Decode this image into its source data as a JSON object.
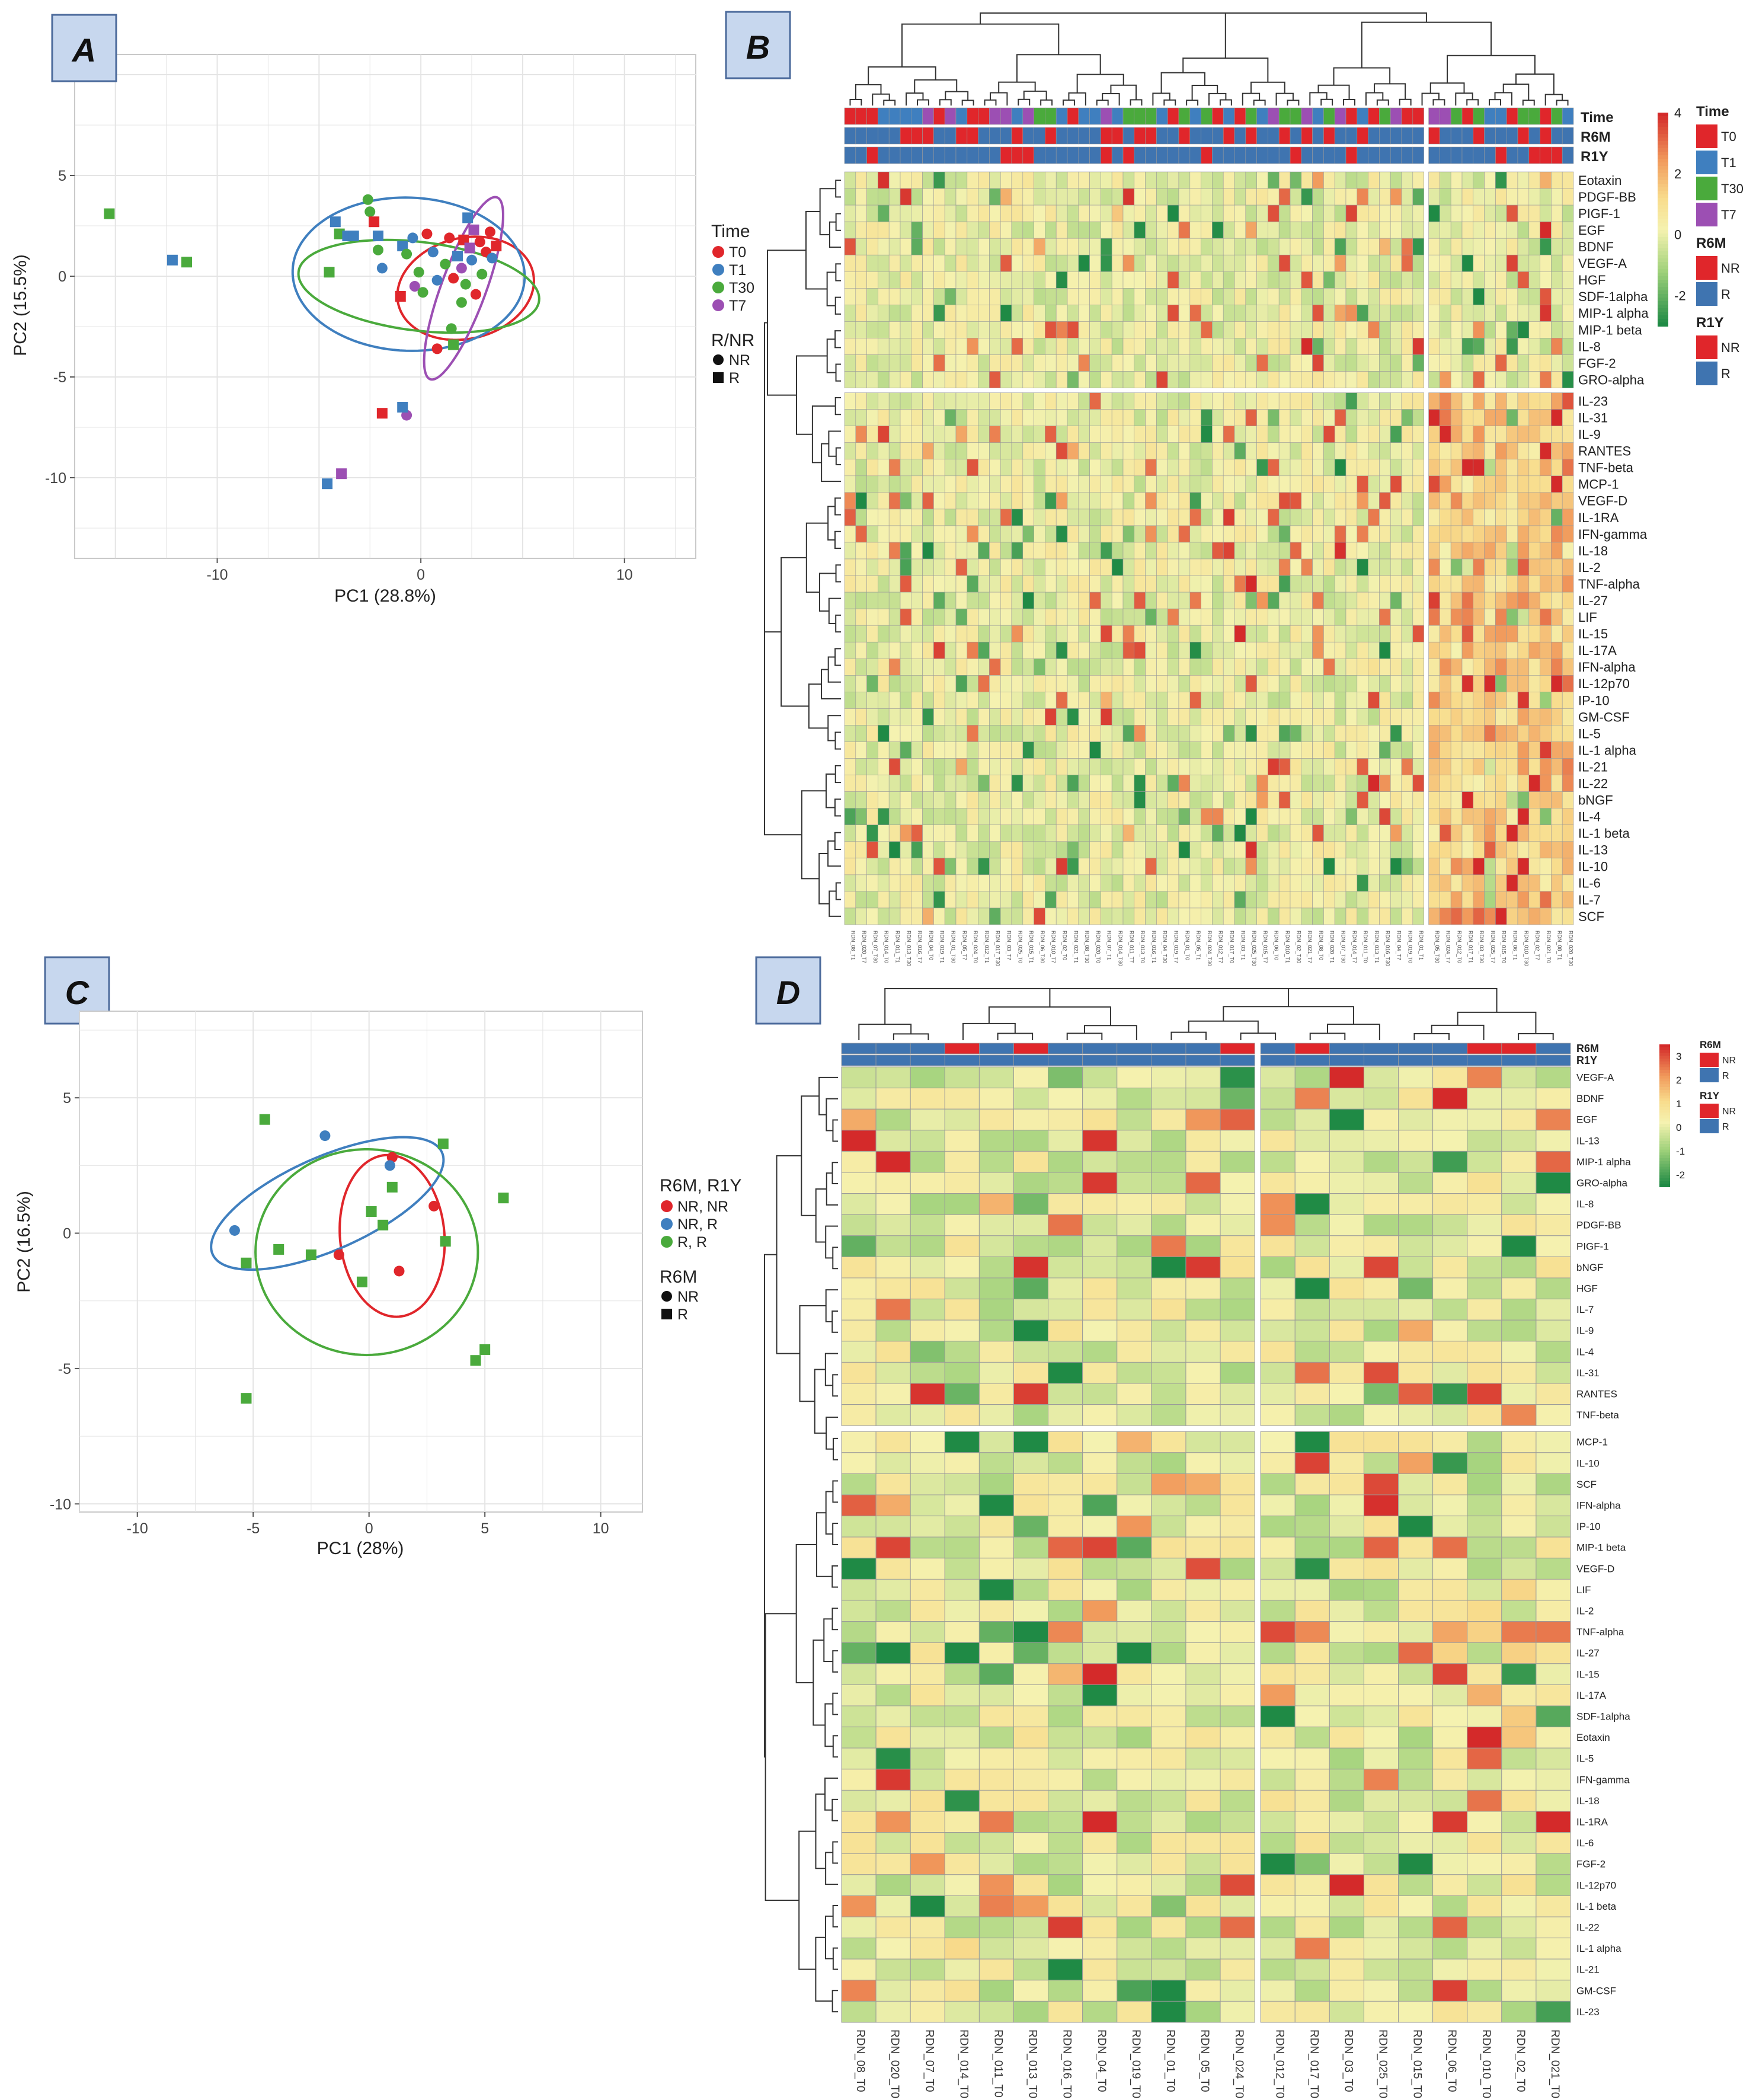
{
  "panels": {
    "A": "A",
    "B": "B",
    "C": "C",
    "D": "D"
  },
  "colors": {
    "T0": "#e0262b",
    "T1": "#3f7fbf",
    "T30": "#4aaa3c",
    "T7": "#9c4fb3",
    "NR": "#e0262b",
    "R": "#3f74b0",
    "grid": "#e4e4e4",
    "heat_hi": "#d42a2a",
    "heat_mid": "#fbf3b4",
    "heat_lo": "#27944a"
  },
  "chart_data": [
    {
      "id": "A",
      "type": "scatter",
      "title": "",
      "xlabel": "PC1 (28.8%)",
      "ylabel": "PC2 (15.5%)",
      "xlim": [
        -17,
        13.5
      ],
      "ylim": [
        -14,
        11
      ],
      "xticks": [
        -10,
        0,
        10
      ],
      "yticks": [
        5,
        0,
        -5,
        -10
      ],
      "grid": true,
      "legend_position": "right",
      "legend": {
        "title": "Time",
        "items": [
          "T0",
          "T1",
          "T30",
          "T7"
        ],
        "shape_title": "R/NR",
        "shapes": [
          "NR",
          "R"
        ]
      },
      "ellipses": [
        {
          "group": "T0",
          "cx": 2.2,
          "cy": -0.6,
          "rx": 6.8,
          "ry": 5.0,
          "angle": 14
        },
        {
          "group": "T1",
          "cx": -0.6,
          "cy": 0.1,
          "rx": 11.4,
          "ry": 7.6,
          "angle": -2
        },
        {
          "group": "T30",
          "cx": -0.1,
          "cy": -0.5,
          "rx": 11.9,
          "ry": 4.4,
          "angle": -7
        },
        {
          "group": "T7",
          "cx": 2.1,
          "cy": -0.6,
          "rx": 9.6,
          "ry": 2.2,
          "angle": 70
        }
      ],
      "points": [
        {
          "x": -15.3,
          "y": 3.1,
          "g": "T30",
          "s": "R"
        },
        {
          "x": -12.2,
          "y": 0.8,
          "g": "T1",
          "s": "R"
        },
        {
          "x": -11.5,
          "y": 0.7,
          "g": "T30",
          "s": "R"
        },
        {
          "x": -4.5,
          "y": 0.2,
          "g": "T30",
          "s": "R"
        },
        {
          "x": -4.2,
          "y": 2.7,
          "g": "T1",
          "s": "R"
        },
        {
          "x": -4.0,
          "y": 2.1,
          "g": "T30",
          "s": "R"
        },
        {
          "x": -3.6,
          "y": 2.0,
          "g": "T1",
          "s": "R"
        },
        {
          "x": -3.3,
          "y": 2.0,
          "g": "T1",
          "s": "R"
        },
        {
          "x": -2.6,
          "y": 3.8,
          "g": "T30",
          "s": "NR"
        },
        {
          "x": -2.5,
          "y": 3.2,
          "g": "T30",
          "s": "NR"
        },
        {
          "x": -2.3,
          "y": 2.7,
          "g": "T0",
          "s": "R"
        },
        {
          "x": -2.1,
          "y": 2.0,
          "g": "T1",
          "s": "R"
        },
        {
          "x": -2.1,
          "y": 1.3,
          "g": "T30",
          "s": "NR"
        },
        {
          "x": -1.9,
          "y": 0.4,
          "g": "T1",
          "s": "NR"
        },
        {
          "x": -0.9,
          "y": 1.5,
          "g": "T1",
          "s": "R"
        },
        {
          "x": -0.7,
          "y": 1.1,
          "g": "T30",
          "s": "NR"
        },
        {
          "x": -0.4,
          "y": 1.9,
          "g": "T1",
          "s": "NR"
        },
        {
          "x": -0.1,
          "y": 0.2,
          "g": "T30",
          "s": "NR"
        },
        {
          "x": 0.3,
          "y": 2.1,
          "g": "T0",
          "s": "NR"
        },
        {
          "x": 0.6,
          "y": 1.2,
          "g": "T1",
          "s": "NR"
        },
        {
          "x": -1.0,
          "y": -1.0,
          "g": "T0",
          "s": "R"
        },
        {
          "x": -0.3,
          "y": -0.5,
          "g": "T7",
          "s": "NR"
        },
        {
          "x": 0.1,
          "y": -0.8,
          "g": "T30",
          "s": "NR"
        },
        {
          "x": 0.8,
          "y": -0.2,
          "g": "T1",
          "s": "NR"
        },
        {
          "x": 1.2,
          "y": 0.6,
          "g": "T30",
          "s": "NR"
        },
        {
          "x": 1.4,
          "y": 1.9,
          "g": "T0",
          "s": "NR"
        },
        {
          "x": 1.6,
          "y": -0.1,
          "g": "T0",
          "s": "NR"
        },
        {
          "x": 1.8,
          "y": 1.0,
          "g": "T1",
          "s": "R"
        },
        {
          "x": 2.0,
          "y": 0.4,
          "g": "T7",
          "s": "NR"
        },
        {
          "x": 2.1,
          "y": 1.8,
          "g": "T0",
          "s": "R"
        },
        {
          "x": 2.2,
          "y": -0.4,
          "g": "T30",
          "s": "NR"
        },
        {
          "x": 2.3,
          "y": 2.9,
          "g": "T1",
          "s": "R"
        },
        {
          "x": 2.4,
          "y": 1.4,
          "g": "T7",
          "s": "R"
        },
        {
          "x": 2.5,
          "y": 0.8,
          "g": "T1",
          "s": "NR"
        },
        {
          "x": 2.6,
          "y": 2.3,
          "g": "T7",
          "s": "R"
        },
        {
          "x": 2.7,
          "y": -0.9,
          "g": "T0",
          "s": "NR"
        },
        {
          "x": 2.9,
          "y": 1.7,
          "g": "T0",
          "s": "NR"
        },
        {
          "x": 3.0,
          "y": 0.1,
          "g": "T30",
          "s": "NR"
        },
        {
          "x": 3.2,
          "y": 1.2,
          "g": "T0",
          "s": "NR"
        },
        {
          "x": 3.4,
          "y": 2.2,
          "g": "T0",
          "s": "NR"
        },
        {
          "x": 3.5,
          "y": 0.9,
          "g": "T1",
          "s": "NR"
        },
        {
          "x": 3.7,
          "y": 1.5,
          "g": "T0",
          "s": "R"
        },
        {
          "x": 2.0,
          "y": -1.3,
          "g": "T30",
          "s": "NR"
        },
        {
          "x": 1.5,
          "y": -2.6,
          "g": "T30",
          "s": "NR"
        },
        {
          "x": 0.8,
          "y": -3.6,
          "g": "T0",
          "s": "NR"
        },
        {
          "x": 1.6,
          "y": -3.4,
          "g": "T30",
          "s": "R"
        },
        {
          "x": -0.7,
          "y": -6.9,
          "g": "T7",
          "s": "NR"
        },
        {
          "x": -0.9,
          "y": -6.5,
          "g": "T1",
          "s": "R"
        },
        {
          "x": -1.9,
          "y": -6.8,
          "g": "T0",
          "s": "R"
        },
        {
          "x": -3.9,
          "y": -9.8,
          "g": "T7",
          "s": "R"
        },
        {
          "x": -4.6,
          "y": -10.3,
          "g": "T1",
          "s": "R"
        }
      ]
    },
    {
      "id": "B",
      "type": "heatmap",
      "legend_position": "right",
      "rows": [
        "Eotaxin",
        "PDGF-BB",
        "PIGF-1",
        "EGF",
        "BDNF",
        "VEGF-A",
        "HGF",
        "SDF-1alpha",
        "MIP-1 alpha",
        "MIP-1 beta",
        "IL-8",
        "FGF-2",
        "GRO-alpha",
        "IL-23",
        "IL-31",
        "IL-9",
        "RANTES",
        "TNF-beta",
        "MCP-1",
        "VEGF-D",
        "IL-1RA",
        "IFN-gamma",
        "IL-18",
        "IL-2",
        "TNF-alpha",
        "IL-27",
        "LIF",
        "IL-15",
        "IL-17A",
        "IFN-alpha",
        "IL-12p70",
        "IP-10",
        "GM-CSF",
        "IL-5",
        "IL-1 alpha",
        "IL-21",
        "IL-22",
        "bNGF",
        "IL-4",
        "IL-1 beta",
        "IL-13",
        "IL-10",
        "IL-6",
        "IL-7",
        "SCF"
      ],
      "n_columns": 65,
      "row_split_after": 13,
      "col_split_after": 52,
      "annotation_rows": [
        "Time",
        "R6M",
        "R1Y"
      ],
      "color_scale": {
        "ticks": [
          "4",
          "2",
          "0",
          "-2"
        ],
        "min": -3,
        "max": 4
      },
      "annotation_legends": [
        {
          "title": "Time",
          "items": [
            "T0",
            "T1",
            "T30",
            "T7"
          ]
        },
        {
          "title": "R6M",
          "items": [
            "NR",
            "R"
          ]
        },
        {
          "title": "R1Y",
          "items": [
            "NR",
            "R"
          ]
        }
      ],
      "column_labels": [
        "RDN_08_T1",
        "RDN_020_T7",
        "RDN_07_T30",
        "RDN_014_T0",
        "RDN_011_T1",
        "RDN_013_T30",
        "RDN_016_T7",
        "RDN_04_T0",
        "RDN_019_T1",
        "RDN_01_T30",
        "RDN_05_T7",
        "RDN_024_T0",
        "RDN_012_T1",
        "RDN_017_T30",
        "RDN_03_T7",
        "RDN_025_T0",
        "RDN_015_T1",
        "RDN_06_T30",
        "RDN_010_T7",
        "RDN_02_T0",
        "RDN_021_T1",
        "RDN_08_T30",
        "RDN_020_T0",
        "RDN_07_T1",
        "RDN_014_T30",
        "RDN_011_T7",
        "RDN_013_T0",
        "RDN_016_T1",
        "RDN_04_T30",
        "RDN_019_T7",
        "RDN_01_T0",
        "RDN_05_T1",
        "RDN_024_T30",
        "RDN_012_T7",
        "RDN_017_T0",
        "RDN_03_T1",
        "RDN_025_T30",
        "RDN_015_T7",
        "RDN_06_T0",
        "RDN_010_T1",
        "RDN_02_T30",
        "RDN_021_T7",
        "RDN_08_T0",
        "RDN_020_T1",
        "RDN_07_T30",
        "RDN_014_T7",
        "RDN_011_T0",
        "RDN_013_T1",
        "RDN_016_T30",
        "RDN_04_T7",
        "RDN_019_T0",
        "RDN_01_T1",
        "RDN_05_T30",
        "RDN_024_T7",
        "RDN_012_T0",
        "RDN_017_T1",
        "RDN_03_T30",
        "RDN_025_T7",
        "RDN_015_T0",
        "RDN_06_T1",
        "RDN_010_T30",
        "RDN_02_T7",
        "RDN_021_T0",
        "RDN_08_T1",
        "RDN_020_T30"
      ]
    },
    {
      "id": "C",
      "type": "scatter",
      "title": "",
      "xlabel": "PC1 (28%)",
      "ylabel": "PC2 (16.5%)",
      "xlim": [
        -12.5,
        11.8
      ],
      "ylim": [
        -10.3,
        8.2
      ],
      "xticks": [
        -10,
        -5,
        0,
        5,
        10
      ],
      "yticks": [
        5,
        0,
        -5,
        -10
      ],
      "grid": true,
      "legend_position": "right",
      "legend": {
        "title": "R6M, R1Y",
        "items": [
          "NR, NR",
          "NR, R",
          "R, R"
        ],
        "shape_title": "R6M",
        "shapes": [
          "NR",
          "R"
        ]
      },
      "ellipses": [
        {
          "group": "NR, NR",
          "cx": 1.0,
          "cy": -0.1,
          "rx": 4.5,
          "ry": 6.0,
          "angle": 8
        },
        {
          "group": "NR, R",
          "cx": -1.8,
          "cy": 1.1,
          "rx": 10.6,
          "ry": 3.5,
          "angle": 20
        },
        {
          "group": "R, R",
          "cx": -0.1,
          "cy": -0.7,
          "rx": 9.6,
          "ry": 7.6,
          "angle": 0
        }
      ],
      "points": [
        {
          "x": 1.0,
          "y": 2.8,
          "g": "NR, NR",
          "s": "NR"
        },
        {
          "x": 2.8,
          "y": 1.0,
          "g": "NR, NR",
          "s": "NR"
        },
        {
          "x": -1.3,
          "y": -0.8,
          "g": "NR, NR",
          "s": "NR"
        },
        {
          "x": 1.3,
          "y": -1.4,
          "g": "NR, NR",
          "s": "NR"
        },
        {
          "x": -1.9,
          "y": 3.6,
          "g": "NR, R",
          "s": "NR"
        },
        {
          "x": 0.9,
          "y": 2.5,
          "g": "NR, R",
          "s": "NR"
        },
        {
          "x": -5.8,
          "y": 0.1,
          "g": "NR, R",
          "s": "NR"
        },
        {
          "x": -4.5,
          "y": 4.2,
          "g": "R, R",
          "s": "R"
        },
        {
          "x": 3.2,
          "y": 3.3,
          "g": "R, R",
          "s": "R"
        },
        {
          "x": 5.8,
          "y": 1.3,
          "g": "R, R",
          "s": "R"
        },
        {
          "x": 1.0,
          "y": 1.7,
          "g": "R, R",
          "s": "R"
        },
        {
          "x": 0.1,
          "y": 0.8,
          "g": "R, R",
          "s": "R"
        },
        {
          "x": 0.6,
          "y": 0.3,
          "g": "R, R",
          "s": "R"
        },
        {
          "x": 3.3,
          "y": -0.3,
          "g": "R, R",
          "s": "R"
        },
        {
          "x": -3.9,
          "y": -0.6,
          "g": "R, R",
          "s": "R"
        },
        {
          "x": -2.5,
          "y": -0.8,
          "g": "R, R",
          "s": "R"
        },
        {
          "x": -5.3,
          "y": -1.1,
          "g": "R, R",
          "s": "R"
        },
        {
          "x": -0.3,
          "y": -1.8,
          "g": "R, R",
          "s": "R"
        },
        {
          "x": 5.0,
          "y": -4.3,
          "g": "R, R",
          "s": "R"
        },
        {
          "x": 4.6,
          "y": -4.7,
          "g": "R, R",
          "s": "R"
        },
        {
          "x": -5.3,
          "y": -6.1,
          "g": "R, R",
          "s": "R"
        }
      ]
    },
    {
      "id": "D",
      "type": "heatmap",
      "legend_position": "right",
      "rows": [
        "VEGF-A",
        "BDNF",
        "EGF",
        "IL-13",
        "MIP-1 alpha",
        "GRO-alpha",
        "IL-8",
        "PDGF-BB",
        "PIGF-1",
        "bNGF",
        "HGF",
        "IL-7",
        "IL-9",
        "IL-4",
        "IL-31",
        "RANTES",
        "TNF-beta",
        "MCP-1",
        "IL-10",
        "SCF",
        "IFN-alpha",
        "IP-10",
        "MIP-1 beta",
        "VEGF-D",
        "LIF",
        "IL-2",
        "TNF-alpha",
        "IL-27",
        "IL-15",
        "IL-17A",
        "SDF-1alpha",
        "Eotaxin",
        "IL-5",
        "IFN-gamma",
        "IL-18",
        "IL-1RA",
        "IL-6",
        "FGF-2",
        "IL-12p70",
        "IL-1 beta",
        "IL-22",
        "IL-1 alpha",
        "IL-21",
        "GM-CSF",
        "IL-23"
      ],
      "row_split_after": 17,
      "col_split_after": 12,
      "annotation_rows": [
        "R6M",
        "R1Y"
      ],
      "columns": [
        "RDN_08_T0",
        "RDN_020_T0",
        "RDN_07_T0",
        "RDN_014_T0",
        "RDN_011_T0",
        "RDN_013_T0",
        "RDN_016_T0",
        "RDN_04_T0",
        "RDN_019_T0",
        "RDN_01_T0",
        "RDN_05_T0",
        "RDN_024_T0",
        "RDN_012_T0",
        "RDN_017_T0",
        "RDN_03_T0",
        "RDN_025_T0",
        "RDN_015_T0",
        "RDN_06_T0",
        "RDN_010_T0",
        "RDN_02_T0",
        "RDN_021_T0"
      ],
      "r6m": [
        "R",
        "R",
        "R",
        "NR",
        "R",
        "NR",
        "R",
        "R",
        "R",
        "R",
        "R",
        "NR",
        "R",
        "NR",
        "R",
        "R",
        "R",
        "R",
        "NR",
        "NR",
        "R"
      ],
      "r1y": [
        "R",
        "R",
        "R",
        "R",
        "R",
        "R",
        "R",
        "R",
        "R",
        "R",
        "R",
        "R",
        "R",
        "R",
        "R",
        "R",
        "R",
        "R",
        "R",
        "R",
        "R"
      ],
      "color_scale": {
        "ticks": [
          "3",
          "2",
          "1",
          "0",
          "-1",
          "-2"
        ],
        "min": -2.5,
        "max": 3.5
      },
      "annotation_legends": [
        {
          "title": "R6M",
          "items": [
            "NR",
            "R"
          ]
        },
        {
          "title": "R1Y",
          "items": [
            "NR",
            "R"
          ]
        }
      ]
    }
  ]
}
